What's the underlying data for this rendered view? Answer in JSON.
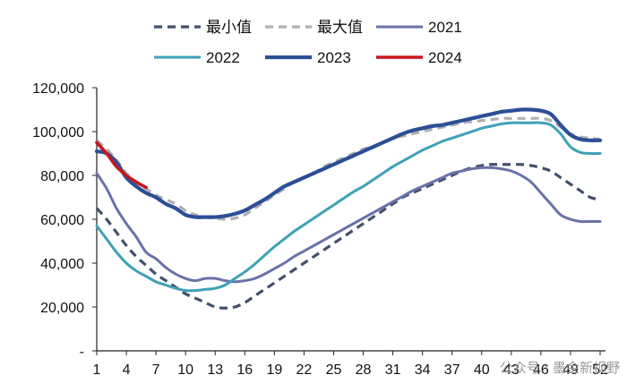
{
  "chart_data": {
    "type": "line",
    "title": "",
    "xlabel": "",
    "ylabel": "",
    "x": [
      1,
      2,
      3,
      4,
      5,
      6,
      7,
      8,
      9,
      10,
      11,
      12,
      13,
      14,
      15,
      16,
      17,
      18,
      19,
      20,
      21,
      22,
      23,
      24,
      25,
      26,
      27,
      28,
      29,
      30,
      31,
      32,
      33,
      34,
      35,
      36,
      37,
      38,
      39,
      40,
      41,
      42,
      43,
      44,
      45,
      46,
      47,
      48,
      49,
      50,
      51,
      52
    ],
    "x_tick_labels": [
      "1",
      "4",
      "7",
      "10",
      "13",
      "16",
      "19",
      "22",
      "25",
      "28",
      "31",
      "34",
      "37",
      "40",
      "43",
      "46",
      "49",
      "52"
    ],
    "x_tick_values": [
      1,
      4,
      7,
      10,
      13,
      16,
      19,
      22,
      25,
      28,
      31,
      34,
      37,
      40,
      43,
      46,
      49,
      52
    ],
    "xlim": [
      1,
      52
    ],
    "ylim": [
      0,
      120000
    ],
    "y_ticks": [
      0,
      20000,
      40000,
      60000,
      80000,
      100000,
      120000
    ],
    "y_tick_labels": [
      "-",
      "20,000",
      "40,000",
      "60,000",
      "80,000",
      "100,000",
      "120,000"
    ],
    "grid": false,
    "legend_position": "top",
    "series": [
      {
        "name": "最小值",
        "color": "#44506b",
        "dash": "dashed",
        "width": 3.2,
        "x": [
          1,
          2,
          3,
          4,
          5,
          6,
          7,
          8,
          9,
          10,
          11,
          12,
          13,
          14,
          15,
          16,
          17,
          18,
          19,
          20,
          21,
          22,
          23,
          24,
          25,
          26,
          27,
          28,
          29,
          30,
          31,
          32,
          33,
          34,
          35,
          36,
          37,
          38,
          39,
          40,
          41,
          42,
          43,
          44,
          45,
          46,
          47,
          48,
          49,
          50,
          51,
          52
        ],
        "values": [
          65000,
          60000,
          54000,
          48000,
          43000,
          39000,
          35000,
          32000,
          29000,
          26000,
          24000,
          22000,
          20000,
          19500,
          20000,
          22000,
          25000,
          28000,
          31000,
          34000,
          37000,
          40000,
          43000,
          46000,
          49000,
          52000,
          55000,
          58000,
          61000,
          64000,
          67000,
          70000,
          72000,
          74000,
          76000,
          78000,
          80000,
          82000,
          83500,
          84500,
          85000,
          85000,
          85000,
          85000,
          84500,
          83500,
          82000,
          79000,
          76000,
          73000,
          70000,
          69000
        ]
      },
      {
        "name": "最大值",
        "color": "#b0b0b0",
        "dash": "dashed",
        "width": 3.2,
        "x": [
          1,
          2,
          3,
          4,
          5,
          6,
          7,
          8,
          9,
          10,
          11,
          12,
          13,
          14,
          15,
          16,
          17,
          18,
          19,
          20,
          21,
          22,
          23,
          24,
          25,
          26,
          27,
          28,
          29,
          30,
          31,
          32,
          33,
          34,
          35,
          36,
          37,
          38,
          39,
          40,
          41,
          42,
          43,
          44,
          45,
          46,
          47,
          48,
          49,
          50,
          51,
          52
        ],
        "values": [
          96000,
          92000,
          87000,
          81000,
          77000,
          74000,
          71000,
          69000,
          67000,
          64000,
          62000,
          61000,
          60500,
          60000,
          60500,
          62000,
          65000,
          68000,
          71000,
          74000,
          77000,
          79000,
          81000,
          84000,
          86000,
          88000,
          90000,
          92000,
          93000,
          95000,
          97000,
          98000,
          99000,
          100000,
          101000,
          102000,
          103000,
          104000,
          104500,
          105000,
          105500,
          106000,
          106000,
          106000,
          106000,
          106000,
          105000,
          102000,
          99000,
          97500,
          97000,
          96500
        ]
      },
      {
        "name": "2021",
        "color": "#6a72aa",
        "dash": "solid",
        "width": 3.0,
        "x": [
          1,
          2,
          3,
          4,
          5,
          6,
          7,
          8,
          9,
          10,
          11,
          12,
          13,
          14,
          15,
          16,
          17,
          18,
          19,
          20,
          21,
          22,
          23,
          24,
          25,
          26,
          27,
          28,
          29,
          30,
          31,
          32,
          33,
          34,
          35,
          36,
          37,
          38,
          39,
          40,
          41,
          42,
          43,
          44,
          45,
          46,
          47,
          48,
          49,
          50,
          51,
          52
        ],
        "values": [
          81000,
          74000,
          65000,
          58000,
          52000,
          45000,
          42000,
          38000,
          35000,
          33000,
          32000,
          33000,
          33000,
          32000,
          31500,
          32000,
          33000,
          35000,
          37500,
          40000,
          43000,
          45500,
          48000,
          50500,
          53000,
          55500,
          58000,
          60500,
          63000,
          65500,
          68000,
          70500,
          73000,
          75000,
          77000,
          79000,
          81000,
          82000,
          83000,
          83500,
          83500,
          83000,
          82000,
          80000,
          77000,
          72000,
          67000,
          62000,
          60000,
          59000,
          59000,
          59000
        ]
      },
      {
        "name": "2022",
        "color": "#3ea1b6",
        "dash": "solid",
        "width": 3.0,
        "x": [
          1,
          2,
          3,
          4,
          5,
          6,
          7,
          8,
          9,
          10,
          11,
          12,
          13,
          14,
          15,
          16,
          17,
          18,
          19,
          20,
          21,
          22,
          23,
          24,
          25,
          26,
          27,
          28,
          29,
          30,
          31,
          32,
          33,
          34,
          35,
          36,
          37,
          38,
          39,
          40,
          41,
          42,
          43,
          44,
          45,
          46,
          47,
          48,
          49,
          50,
          51,
          52
        ],
        "values": [
          57000,
          51000,
          45000,
          40000,
          36500,
          34000,
          31500,
          30000,
          28500,
          27500,
          27500,
          28000,
          28500,
          30000,
          33000,
          36000,
          39500,
          43500,
          47500,
          51000,
          54500,
          57500,
          60500,
          63500,
          66500,
          69500,
          72500,
          75000,
          78000,
          81000,
          84000,
          86500,
          89000,
          91500,
          93500,
          95500,
          97000,
          98500,
          100000,
          101500,
          102500,
          103500,
          104000,
          104000,
          104000,
          104000,
          103000,
          99000,
          93000,
          90500,
          90000,
          90000
        ]
      },
      {
        "name": "2023",
        "color": "#2c4f95",
        "dash": "solid",
        "width": 4.2,
        "x": [
          1,
          2,
          3,
          4,
          5,
          6,
          7,
          8,
          9,
          10,
          11,
          12,
          13,
          14,
          15,
          16,
          17,
          18,
          19,
          20,
          21,
          22,
          23,
          24,
          25,
          26,
          27,
          28,
          29,
          30,
          31,
          32,
          33,
          34,
          35,
          36,
          37,
          38,
          39,
          40,
          41,
          42,
          43,
          44,
          45,
          46,
          47,
          48,
          49,
          50,
          51,
          52
        ],
        "values": [
          91000,
          90000,
          86000,
          79000,
          75000,
          72000,
          70000,
          67000,
          65000,
          62000,
          61000,
          61000,
          61000,
          61500,
          62500,
          64000,
          66500,
          69000,
          72000,
          75000,
          77000,
          79000,
          81000,
          83000,
          85000,
          87000,
          89000,
          91000,
          93000,
          95000,
          97000,
          99000,
          100500,
          101500,
          102500,
          103000,
          104000,
          105000,
          106000,
          107000,
          108000,
          109000,
          109500,
          110000,
          110000,
          109500,
          108000,
          103000,
          98500,
          96500,
          96000,
          96000
        ]
      },
      {
        "name": "2024",
        "color": "#c8161d",
        "dash": "solid",
        "width": 3.6,
        "x": [
          1,
          2,
          3,
          4,
          5,
          6
        ],
        "values": [
          95000,
          90000,
          84000,
          80000,
          77000,
          74500
        ]
      }
    ]
  },
  "legend": {
    "items": [
      {
        "label": "最小值"
      },
      {
        "label": "最大值"
      },
      {
        "label": "2021"
      },
      {
        "label": "2022"
      },
      {
        "label": "2023"
      },
      {
        "label": "2024"
      }
    ]
  },
  "watermark": {
    "text": "公众号 · 墨金新视野"
  }
}
